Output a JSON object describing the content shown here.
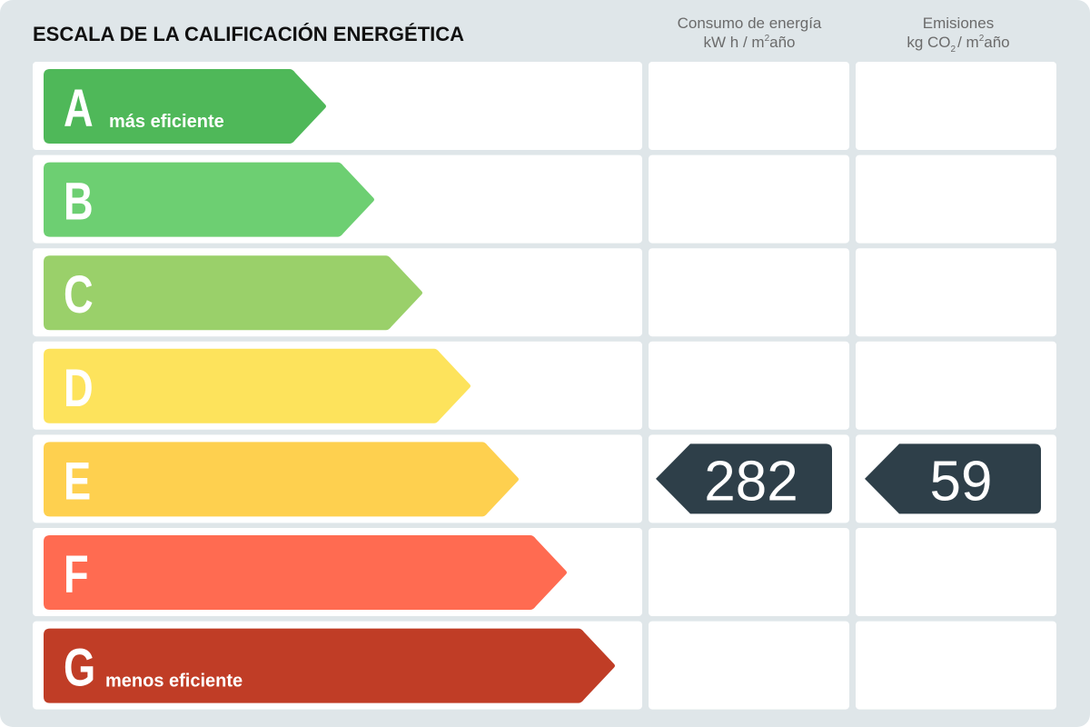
{
  "title": "ESCALA DE LA CALIFICACIÓN ENERGÉTICA",
  "columns": {
    "energy": {
      "heading": "Consumo de energía",
      "unit_a": "kW h / m",
      "unit_sup": "2",
      "unit_b": "año"
    },
    "emissions": {
      "heading": "Emisiones",
      "unit_a": "kg CO",
      "unit_sub": "2",
      "unit_b": "/ m",
      "unit_sup": "2",
      "unit_c": "año"
    }
  },
  "grades": [
    {
      "letter": "A",
      "color": "#4fb859",
      "note": "más eficiente"
    },
    {
      "letter": "B",
      "color": "#6dcf72"
    },
    {
      "letter": "C",
      "color": "#9ad06a"
    },
    {
      "letter": "D",
      "color": "#fde35c"
    },
    {
      "letter": "E",
      "color": "#fed04f"
    },
    {
      "letter": "F",
      "color": "#ff6b51"
    },
    {
      "letter": "G",
      "color": "#c03d26",
      "note": "menos eficiente"
    }
  ],
  "rating": {
    "grade": "E",
    "energy": 282,
    "emissions": 59,
    "color": "#2e3f49"
  }
}
